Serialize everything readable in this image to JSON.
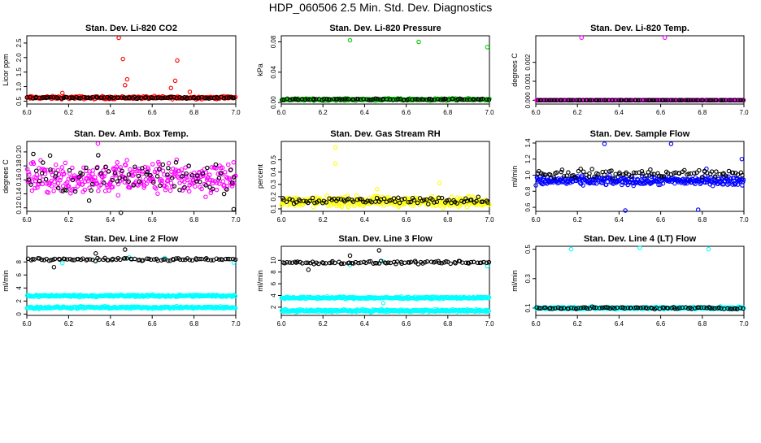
{
  "page": {
    "title": "HDP_060506  2.5 Min. Std. Dev. Diagnostics"
  },
  "chart_data": [
    {
      "type": "scatter",
      "title": "Stan. Dev. Li-820 CO2",
      "ylabel": "Licor ppm",
      "xlim": [
        6.0,
        7.0
      ],
      "ylim": [
        0.4,
        2.75
      ],
      "x_ticks": [
        6.0,
        6.2,
        6.4,
        6.6,
        6.8,
        7.0
      ],
      "x_tick_labels": [
        "6.0",
        "6.2",
        "6.4",
        "6.6",
        "6.8",
        "7.0"
      ],
      "y_ticks": [
        0.5,
        1.0,
        1.5,
        2.0,
        2.5
      ],
      "y_tick_labels": [
        "0.5",
        "1.0",
        "1.5",
        "2.0",
        "2.5"
      ],
      "series": [
        {
          "color": "#ff0000",
          "base": 0.62,
          "noise": 0.07,
          "count": 240,
          "outliers": [
            [
              6.17,
              0.78
            ],
            [
              6.44,
              2.68
            ],
            [
              6.46,
              1.95
            ],
            [
              6.48,
              1.25
            ],
            [
              6.47,
              1.05
            ],
            [
              6.72,
              1.9
            ],
            [
              6.71,
              1.2
            ],
            [
              6.69,
              0.95
            ],
            [
              6.78,
              0.82
            ]
          ]
        },
        {
          "color": "#000000",
          "base": 0.62,
          "noise": 0.04,
          "count": 90,
          "outliers": []
        }
      ]
    },
    {
      "type": "scatter",
      "title": "Stan. Dev. Li-820 Pressure",
      "ylabel": "kPa",
      "xlim": [
        6.0,
        7.0
      ],
      "ylim": [
        -0.002,
        0.088
      ],
      "x_ticks": [
        6.0,
        6.2,
        6.4,
        6.6,
        6.8,
        7.0
      ],
      "x_tick_labels": [
        "6.0",
        "6.2",
        "6.4",
        "6.6",
        "6.8",
        "7.0"
      ],
      "y_ticks": [
        0.0,
        0.04,
        0.08
      ],
      "y_tick_labels": [
        "0.00",
        "0.04",
        "0.08"
      ],
      "series": [
        {
          "color": "#00cc00",
          "base": 0.004,
          "noise": 0.002,
          "count": 240,
          "outliers": [
            [
              6.33,
              0.082
            ],
            [
              6.66,
              0.08
            ],
            [
              6.99,
              0.073
            ]
          ]
        },
        {
          "color": "#000000",
          "base": 0.004,
          "noise": 0.0015,
          "count": 90,
          "outliers": []
        }
      ]
    },
    {
      "type": "scatter",
      "title": "Stan. Dev. Li-820 Temp.",
      "ylabel": "degrees C",
      "xlim": [
        6.0,
        7.0
      ],
      "ylim": [
        -0.0002,
        0.0034
      ],
      "x_ticks": [
        6.0,
        6.2,
        6.4,
        6.6,
        6.8,
        7.0
      ],
      "x_tick_labels": [
        "6.0",
        "6.2",
        "6.4",
        "6.6",
        "6.8",
        "7.0"
      ],
      "y_ticks": [
        0.0,
        0.001,
        0.002
      ],
      "y_tick_labels": [
        "0.000",
        "0.001",
        "0.002"
      ],
      "series": [
        {
          "color": "#ff00ff",
          "base": 0.0,
          "noise": 0.0,
          "count": 240,
          "outliers": [
            [
              6.22,
              0.0033
            ],
            [
              6.62,
              0.0033
            ]
          ]
        },
        {
          "color": "#000000",
          "base": 0.0,
          "noise": 0.0,
          "count": 90,
          "outliers": []
        }
      ]
    },
    {
      "type": "scatter",
      "title": "Stan. Dev. Amb. Box Temp.",
      "ylabel": "degrees C",
      "xlim": [
        6.0,
        7.0
      ],
      "ylim": [
        0.115,
        0.215
      ],
      "x_ticks": [
        6.0,
        6.2,
        6.4,
        6.6,
        6.8,
        7.0
      ],
      "x_tick_labels": [
        "6.0",
        "6.2",
        "6.4",
        "6.6",
        "6.8",
        "7.0"
      ],
      "y_ticks": [
        0.12,
        0.14,
        0.16,
        0.18,
        0.2
      ],
      "y_tick_labels": [
        "0.12",
        "0.14",
        "0.16",
        "0.18",
        "0.20"
      ],
      "series": [
        {
          "color": "#ff00ff",
          "base": 0.163,
          "noise": 0.035,
          "count": 320,
          "outliers": [
            [
              6.34,
              0.212
            ]
          ]
        },
        {
          "color": "#000000",
          "base": 0.165,
          "noise": 0.04,
          "count": 80,
          "outliers": [
            [
              6.99,
              0.118
            ],
            [
              6.45,
              0.113
            ]
          ]
        }
      ]
    },
    {
      "type": "scatter",
      "title": "Stan. Dev. Gas Stream RH",
      "ylabel": "percent",
      "xlim": [
        6.0,
        7.0
      ],
      "ylim": [
        0.08,
        0.65
      ],
      "x_ticks": [
        6.0,
        6.2,
        6.4,
        6.6,
        6.8,
        7.0
      ],
      "x_tick_labels": [
        "6.0",
        "6.2",
        "6.4",
        "6.6",
        "6.8",
        "7.0"
      ],
      "y_ticks": [
        0.1,
        0.2,
        0.3,
        0.4,
        0.5
      ],
      "y_tick_labels": [
        "0.1",
        "0.2",
        "0.3",
        "0.4",
        "0.5"
      ],
      "series": [
        {
          "color": "#ffff00",
          "base": 0.16,
          "noise": 0.06,
          "count": 320,
          "outliers": [
            [
              6.26,
              0.6
            ],
            [
              6.26,
              0.47
            ],
            [
              6.76,
              0.31
            ],
            [
              6.46,
              0.26
            ]
          ]
        },
        {
          "color": "#000000",
          "base": 0.17,
          "noise": 0.04,
          "count": 90,
          "outliers": []
        }
      ]
    },
    {
      "type": "scatter",
      "title": "Stan. Dev. Sample Flow",
      "ylabel": "ml/min",
      "xlim": [
        6.0,
        7.0
      ],
      "ylim": [
        0.55,
        1.42
      ],
      "x_ticks": [
        6.0,
        6.2,
        6.4,
        6.6,
        6.8,
        7.0
      ],
      "x_tick_labels": [
        "6.0",
        "6.2",
        "6.4",
        "6.6",
        "6.8",
        "7.0"
      ],
      "y_ticks": [
        0.6,
        0.8,
        1.0,
        1.2,
        1.4
      ],
      "y_tick_labels": [
        "0.6",
        "0.8",
        "1.0",
        "1.2",
        "1.4"
      ],
      "series": [
        {
          "color": "#0000ff",
          "base": 0.93,
          "noise": 0.08,
          "count": 320,
          "outliers": [
            [
              6.33,
              1.39
            ],
            [
              6.65,
              1.39
            ],
            [
              6.99,
              1.2
            ],
            [
              6.82,
              1.08
            ],
            [
              6.43,
              0.56
            ],
            [
              6.78,
              0.57
            ]
          ]
        },
        {
          "color": "#000000",
          "base": 1.02,
          "noise": 0.08,
          "count": 90,
          "outliers": []
        }
      ]
    },
    {
      "type": "scatter",
      "title": "Stan. Dev. Line 2 Flow",
      "ylabel": "ml/min",
      "xlim": [
        6.0,
        7.0
      ],
      "ylim": [
        -0.2,
        10.4
      ],
      "x_ticks": [
        6.0,
        6.2,
        6.4,
        6.6,
        6.8,
        7.0
      ],
      "x_tick_labels": [
        "6.0",
        "6.2",
        "6.4",
        "6.6",
        "6.8",
        "7.0"
      ],
      "y_ticks": [
        0,
        2,
        4,
        6,
        8
      ],
      "y_tick_labels": [
        "0",
        "2",
        "4",
        "6",
        "8"
      ],
      "series": [
        {
          "color": "#00ffff",
          "base": 2.8,
          "noise": 0.25,
          "count": 280,
          "outliers": [
            [
              6.33,
              8.1
            ],
            [
              6.17,
              7.8
            ],
            [
              6.99,
              7.9
            ],
            [
              6.49,
              8.7
            ],
            [
              6.66,
              8.6
            ]
          ]
        },
        {
          "color": "#00ffff",
          "base": 1.0,
          "noise": 0.25,
          "count": 280,
          "outliers": []
        },
        {
          "color": "#000000",
          "base": 8.4,
          "noise": 0.3,
          "count": 90,
          "outliers": [
            [
              6.47,
              9.9
            ],
            [
              6.13,
              7.2
            ],
            [
              6.33,
              9.3
            ]
          ]
        }
      ]
    },
    {
      "type": "scatter",
      "title": "Stan. Dev. Line 3 Flow",
      "ylabel": "ml/min",
      "xlim": [
        6.0,
        7.0
      ],
      "ylim": [
        0.6,
        12.4
      ],
      "x_ticks": [
        6.0,
        6.2,
        6.4,
        6.6,
        6.8,
        7.0
      ],
      "x_tick_labels": [
        "6.0",
        "6.2",
        "6.4",
        "6.6",
        "6.8",
        "7.0"
      ],
      "y_ticks": [
        2,
        4,
        6,
        8,
        10
      ],
      "y_tick_labels": [
        "2",
        "4",
        "6",
        "8",
        "10"
      ],
      "series": [
        {
          "color": "#00ffff",
          "base": 3.6,
          "noise": 0.25,
          "count": 280,
          "outliers": [
            [
              6.33,
              9.2
            ],
            [
              6.49,
              9.8
            ],
            [
              6.99,
              9.0
            ],
            [
              6.49,
              2.7
            ]
          ]
        },
        {
          "color": "#00ffff",
          "base": 1.4,
          "noise": 0.3,
          "count": 280,
          "outliers": []
        },
        {
          "color": "#000000",
          "base": 9.6,
          "noise": 0.35,
          "count": 90,
          "outliers": [
            [
              6.47,
              11.7
            ],
            [
              6.13,
              8.4
            ],
            [
              6.33,
              10.8
            ]
          ]
        }
      ]
    },
    {
      "type": "scatter",
      "title": "Stan. Dev. Line 4 (LT) Flow",
      "ylabel": "ml/min",
      "xlim": [
        6.0,
        7.0
      ],
      "ylim": [
        0.05,
        0.52
      ],
      "x_ticks": [
        6.0,
        6.2,
        6.4,
        6.6,
        6.8,
        7.0
      ],
      "x_tick_labels": [
        "6.0",
        "6.2",
        "6.4",
        "6.6",
        "6.8",
        "7.0"
      ],
      "y_ticks": [
        0.1,
        0.3,
        0.5
      ],
      "y_tick_labels": [
        "0.1",
        "0.3",
        "0.5"
      ],
      "series": [
        {
          "color": "#00ffff",
          "base": 0.1,
          "noise": 0.012,
          "count": 320,
          "outliers": [
            [
              6.17,
              0.5
            ],
            [
              6.5,
              0.51
            ],
            [
              6.83,
              0.5
            ]
          ]
        },
        {
          "color": "#000000",
          "base": 0.1,
          "noise": 0.01,
          "count": 90,
          "outliers": []
        }
      ]
    }
  ]
}
